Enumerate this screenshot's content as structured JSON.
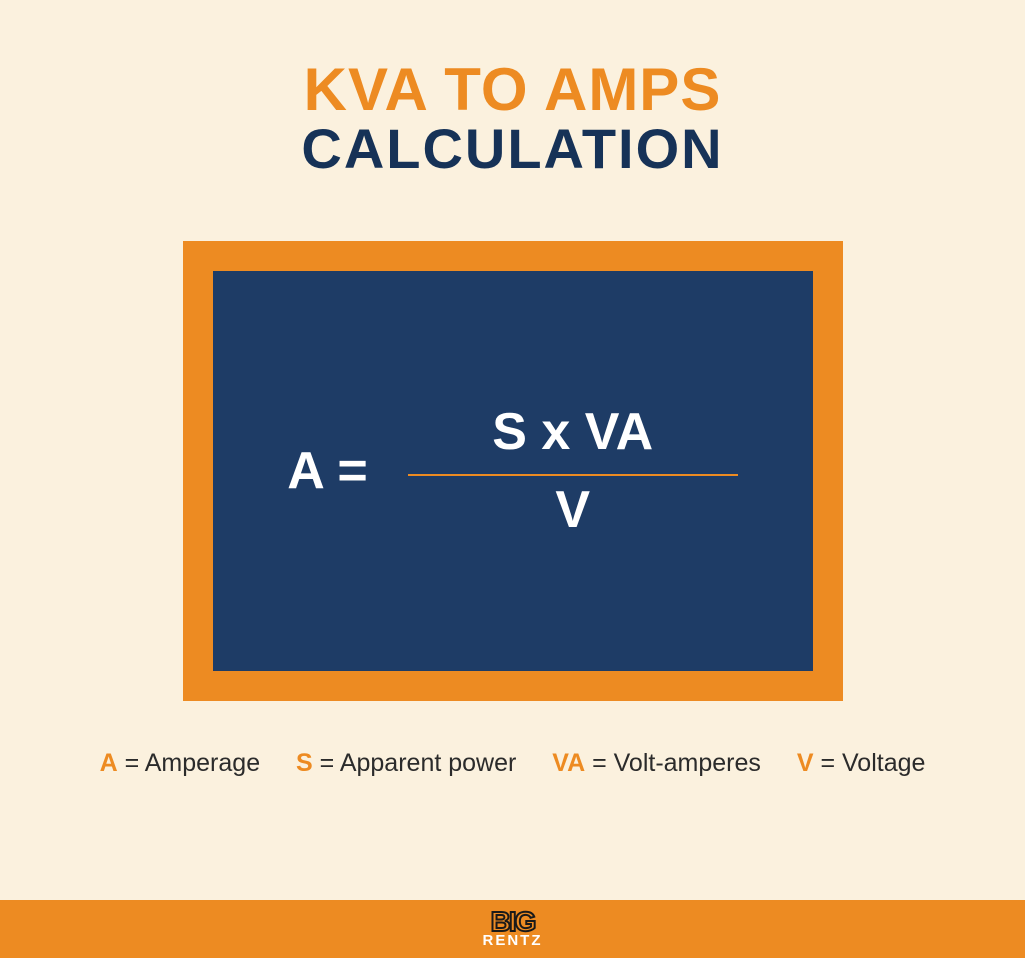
{
  "colors": {
    "background": "#fbf1de",
    "orange": "#ed8b22",
    "navy": "#1e3c66",
    "navy_text": "#163257",
    "white": "#ffffff",
    "legend_text": "#2b2b2b",
    "logo_dark": "#1a1a1a"
  },
  "title": {
    "line1": "KVA TO AMPS",
    "line1_color": "#ed8b22",
    "line1_fontsize": 60,
    "line2": "CALCULATION",
    "line2_color": "#163257",
    "line2_fontsize": 56
  },
  "formula_box": {
    "outer_width": 660,
    "outer_height": 460,
    "outer_bg": "#ed8b22",
    "outer_pad": 30,
    "inner_bg": "#1e3c66",
    "lhs": "A =",
    "numerator": "S x VA",
    "denominator": "V",
    "text_color": "#ffffff",
    "lhs_fontsize": 52,
    "frac_fontsize": 52,
    "fraction_line_color": "#ed8b22",
    "fraction_line_width": 330
  },
  "legend": {
    "items": [
      {
        "key": "A",
        "label": "Amperage"
      },
      {
        "key": "S",
        "label": "Apparent power"
      },
      {
        "key": "VA",
        "label": "Volt-amperes"
      },
      {
        "key": "V",
        "label": "Voltage"
      }
    ],
    "key_color": "#ed8b22",
    "text_color": "#2b2b2b",
    "fontsize": 25
  },
  "footer": {
    "bg": "#ed8b22",
    "logo_top": "BIG",
    "logo_bottom": "RENTZ"
  }
}
